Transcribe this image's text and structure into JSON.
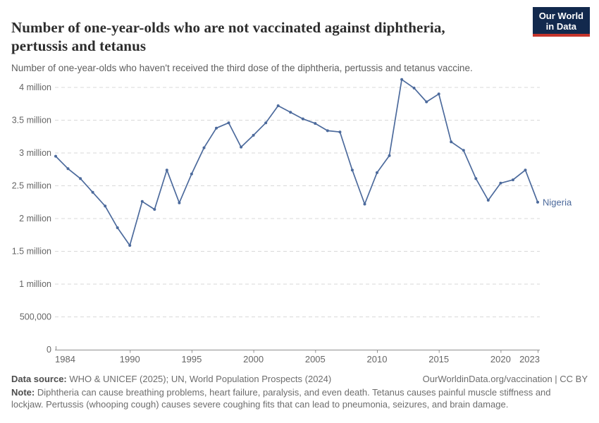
{
  "header": {
    "title": "Number of one-year-olds who are not vaccinated against diphtheria, pertussis and tetanus",
    "subtitle": "Number of one-year-olds who haven't received the third dose of the diphtheria, pertussis and tetanus vaccine.",
    "logo": {
      "line1": "Our World",
      "line2": "in Data",
      "bg_color": "#12294d",
      "accent_color": "#c5352c"
    }
  },
  "chart_data": {
    "type": "line",
    "title": "Number of one-year-olds who are not vaccinated against diphtheria, pertussis and tetanus",
    "xlabel": "",
    "ylabel": "",
    "xlim": [
      1984,
      2023
    ],
    "ylim": [
      0,
      4300000
    ],
    "grid": "horizontal-dashed",
    "legend_position": "end-of-line-label",
    "x": [
      1984,
      1985,
      1986,
      1987,
      1988,
      1989,
      1990,
      1991,
      1992,
      1993,
      1994,
      1995,
      1996,
      1997,
      1998,
      1999,
      2000,
      2001,
      2002,
      2003,
      2004,
      2005,
      2006,
      2007,
      2008,
      2009,
      2010,
      2011,
      2012,
      2013,
      2014,
      2015,
      2016,
      2017,
      2018,
      2019,
      2020,
      2021,
      2022,
      2023
    ],
    "series": [
      {
        "name": "Nigeria",
        "color": "#4c6a9c",
        "values": [
          2950000,
          2760000,
          2610000,
          2400000,
          2190000,
          1860000,
          1590000,
          2260000,
          2140000,
          2740000,
          2240000,
          2680000,
          3080000,
          3380000,
          3460000,
          3090000,
          3270000,
          3460000,
          3720000,
          3620000,
          3520000,
          3450000,
          3340000,
          3320000,
          2740000,
          2220000,
          2700000,
          2960000,
          4120000,
          3990000,
          3780000,
          3900000,
          3170000,
          3040000,
          2610000,
          2280000,
          2540000,
          2590000,
          2740000,
          2250000
        ]
      }
    ],
    "xticks": [
      1984,
      1990,
      1995,
      2000,
      2005,
      2010,
      2015,
      2020,
      2023
    ],
    "yticks": [
      {
        "value": 0,
        "label": "0"
      },
      {
        "value": 500000,
        "label": "500,000"
      },
      {
        "value": 1000000,
        "label": "1 million"
      },
      {
        "value": 1500000,
        "label": "1.5 million"
      },
      {
        "value": 2000000,
        "label": "2 million"
      },
      {
        "value": 2500000,
        "label": "2.5 million"
      },
      {
        "value": 3000000,
        "label": "3 million"
      },
      {
        "value": 3500000,
        "label": "3.5 million"
      },
      {
        "value": 4000000,
        "label": "4 million"
      }
    ],
    "entity_label": "Nigeria",
    "colors": {
      "line": "#4c6a9c",
      "gridline": "#d9d9d9",
      "axis": "#8f8f8f",
      "tick_label": "#666666"
    }
  },
  "footer": {
    "source_label": "Data source:",
    "source_text": "WHO & UNICEF (2025); UN, World Population Prospects (2024)",
    "link_text": "OurWorldinData.org/vaccination | CC BY",
    "note_label": "Note:",
    "note_text": "Diphtheria can cause breathing problems, heart failure, paralysis, and even death. Tetanus causes painful muscle stiffness and lockjaw. Pertussis (whooping cough) causes severe coughing fits that can lead to pneumonia, seizures, and brain damage."
  }
}
